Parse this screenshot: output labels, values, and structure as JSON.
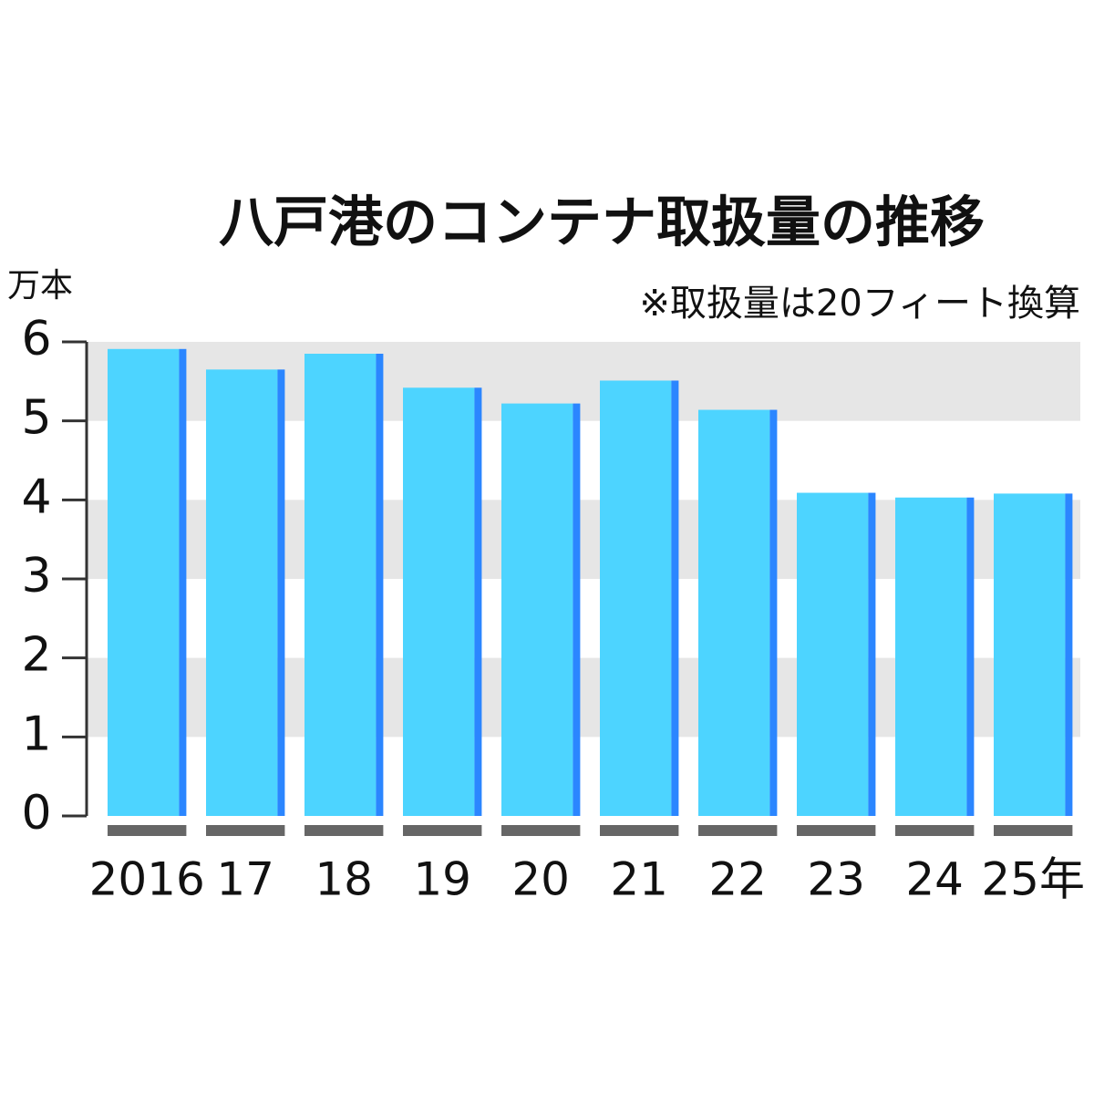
{
  "chart_data": {
    "type": "bar",
    "title": "八戸港のコンテナ取扱量の推移",
    "subtitle": "※取扱量は20フィート換算",
    "y_label": "万本",
    "categories": [
      "2016",
      "17",
      "18",
      "19",
      "20",
      "21",
      "22",
      "23",
      "24",
      "25年"
    ],
    "values": [
      5.91,
      5.65,
      5.85,
      5.42,
      5.22,
      5.51,
      5.14,
      4.09,
      4.03,
      4.08
    ],
    "color": "#4dd4ff",
    "edge_color": "#2b86ff",
    "base_color": "#666666",
    "band_color": "#e6e6e6",
    "ylim": [
      0,
      6
    ],
    "yticks": [
      0,
      1,
      2,
      3,
      4,
      5,
      6
    ],
    "grid": true
  }
}
